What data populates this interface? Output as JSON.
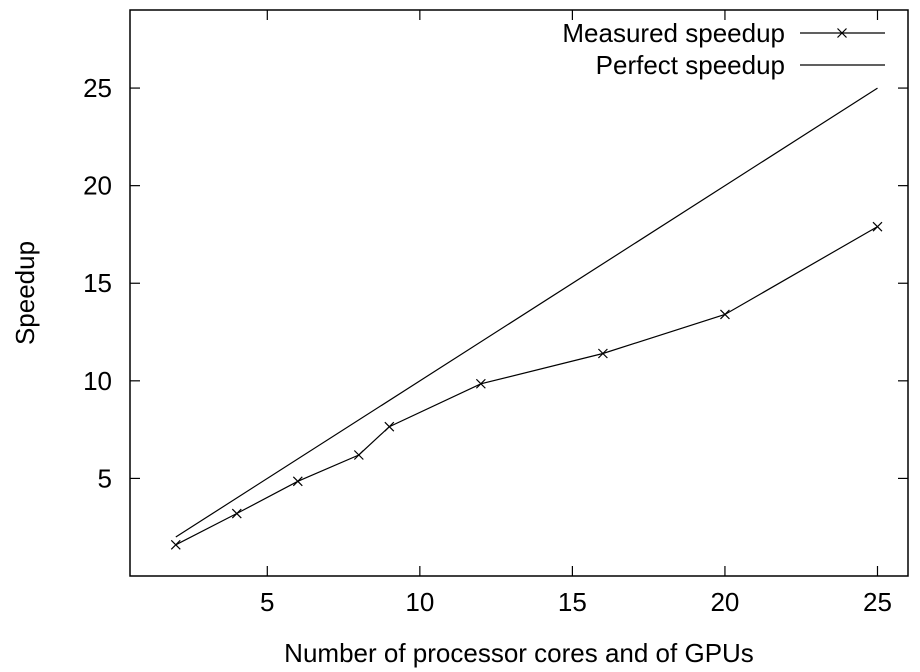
{
  "chart_data": {
    "type": "line",
    "title": "",
    "xlabel": "Number of processor cores and of GPUs",
    "ylabel": "Speedup",
    "xlim": [
      0.5,
      26
    ],
    "ylim": [
      0,
      29
    ],
    "xticks": [
      5,
      10,
      15,
      20,
      25
    ],
    "yticks": [
      5,
      10,
      15,
      20,
      25
    ],
    "grid": false,
    "legend_position": "top-right",
    "series": [
      {
        "name": "Measured speedup",
        "marker": "x",
        "color": "#000000",
        "x": [
          2,
          4,
          6,
          8,
          9,
          12,
          16,
          20,
          25
        ],
        "y": [
          1.6,
          3.2,
          4.85,
          6.2,
          7.65,
          9.85,
          11.4,
          13.4,
          17.9
        ]
      },
      {
        "name": "Perfect speedup",
        "marker": "none",
        "color": "#000000",
        "x": [
          2,
          25
        ],
        "y": [
          2,
          25
        ]
      }
    ]
  }
}
